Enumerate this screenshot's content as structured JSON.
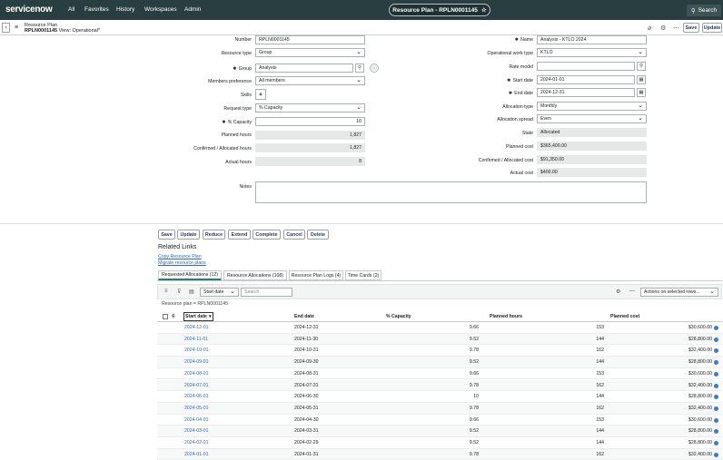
{
  "nav": {
    "logo": "servicenow",
    "links": [
      "All",
      "Favorites",
      "History",
      "Workspaces",
      "Admin"
    ],
    "title": "Resource Plan - RPLN0001145",
    "star_icon": "star-icon",
    "search_label": "Search"
  },
  "header": {
    "record_type": "Resource Plan",
    "record_number": "RPLN0001145",
    "view_label": "View: Operational*",
    "update_label": "Update",
    "save_label": "Save"
  },
  "form": {
    "left": {
      "number_label": "Number",
      "number_value": "RPLN0001145",
      "resource_type_label": "Resource type",
      "resource_type_value": "Group",
      "group_label": "Group",
      "group_value": "Analysts",
      "members_pref_label": "Members preference",
      "members_pref_value": "All members",
      "skills_label": "Skills",
      "request_type_label": "Request type",
      "request_type_value": "% Capacity",
      "capacity_label": "% Capacity",
      "capacity_value": "10",
      "planned_hours_label": "Planned hours",
      "planned_hours_value": "1,827",
      "confirmed_hours_label": "Confirmed / Allocated hours",
      "confirmed_hours_value": "1,827",
      "actual_hours_label": "Actual hours",
      "actual_hours_value": "8",
      "notes_label": "Notes"
    },
    "right": {
      "name_label": "Name",
      "name_value": "Analysis - KTLO 2024",
      "op_work_type_label": "Operational work type",
      "op_work_type_value": "KTLO",
      "rate_model_label": "Rate model",
      "rate_model_value": "",
      "start_date_label": "Start date",
      "start_date_value": "2024-01-01",
      "end_date_label": "End date",
      "end_date_value": "2024-12-31",
      "allocation_type_label": "Allocation type",
      "allocation_type_value": "Monthly",
      "allocation_spread_label": "Allocation spread",
      "allocation_spread_value": "Even",
      "state_label": "State",
      "state_value": "Allocated",
      "planned_cost_label": "Planned cost",
      "planned_cost_value": "$365,400.00",
      "confirmed_cost_label": "Confirmed / Allocated cost",
      "confirmed_cost_value": "$91,350.00",
      "actual_cost_label": "Actual cost",
      "actual_cost_value": "$400.00"
    }
  },
  "actions": [
    "Save",
    "Update",
    "Reduce",
    "Extend",
    "Complete",
    "Cancel",
    "Delete"
  ],
  "related": {
    "title": "Related Links",
    "links": [
      "Copy Resource Plan",
      "Migrate resource plans"
    ]
  },
  "tabs": [
    "Requested Allocations (12)",
    "Resource Allocations (108)",
    "Resource Plan Logs (4)",
    "Time Cards (2)"
  ],
  "list": {
    "filter_field": "Start date",
    "search_placeholder": "Search",
    "actions_label": "Actions on selected rows...",
    "breadcrumb": "Resource plan = RPLN0001145",
    "columns": [
      "Start date",
      "End date",
      "% Capacity",
      "Planned hours",
      "Planned cost"
    ],
    "rows": [
      [
        "2024-12-01",
        "2024-12-31",
        "9.66",
        "153",
        "$30,600.00"
      ],
      [
        "2024-11-01",
        "2024-11-30",
        "9.52",
        "144",
        "$28,800.00"
      ],
      [
        "2024-10-01",
        "2024-10-31",
        "9.78",
        "162",
        "$32,400.00"
      ],
      [
        "2024-09-01",
        "2024-09-30",
        "9.52",
        "144",
        "$28,800.00"
      ],
      [
        "2024-08-01",
        "2024-08-31",
        "9.66",
        "153",
        "$30,600.00"
      ],
      [
        "2024-07-01",
        "2024-07-31",
        "9.78",
        "162",
        "$32,400.00"
      ],
      [
        "2024-06-01",
        "2024-06-30",
        "10",
        "144",
        "$28,800.00"
      ],
      [
        "2024-05-01",
        "2024-05-31",
        "9.78",
        "162",
        "$32,400.00"
      ],
      [
        "2024-04-01",
        "2024-04-30",
        "9.66",
        "153",
        "$30,600.00"
      ],
      [
        "2024-03-01",
        "2024-03-31",
        "9.52",
        "144",
        "$28,800.00"
      ],
      [
        "2024-02-01",
        "2024-02-29",
        "9.52",
        "144",
        "$28,800.00"
      ],
      [
        "2024-01-01",
        "2024-01-31",
        "9.78",
        "162",
        "$32,400.00"
      ]
    ]
  }
}
